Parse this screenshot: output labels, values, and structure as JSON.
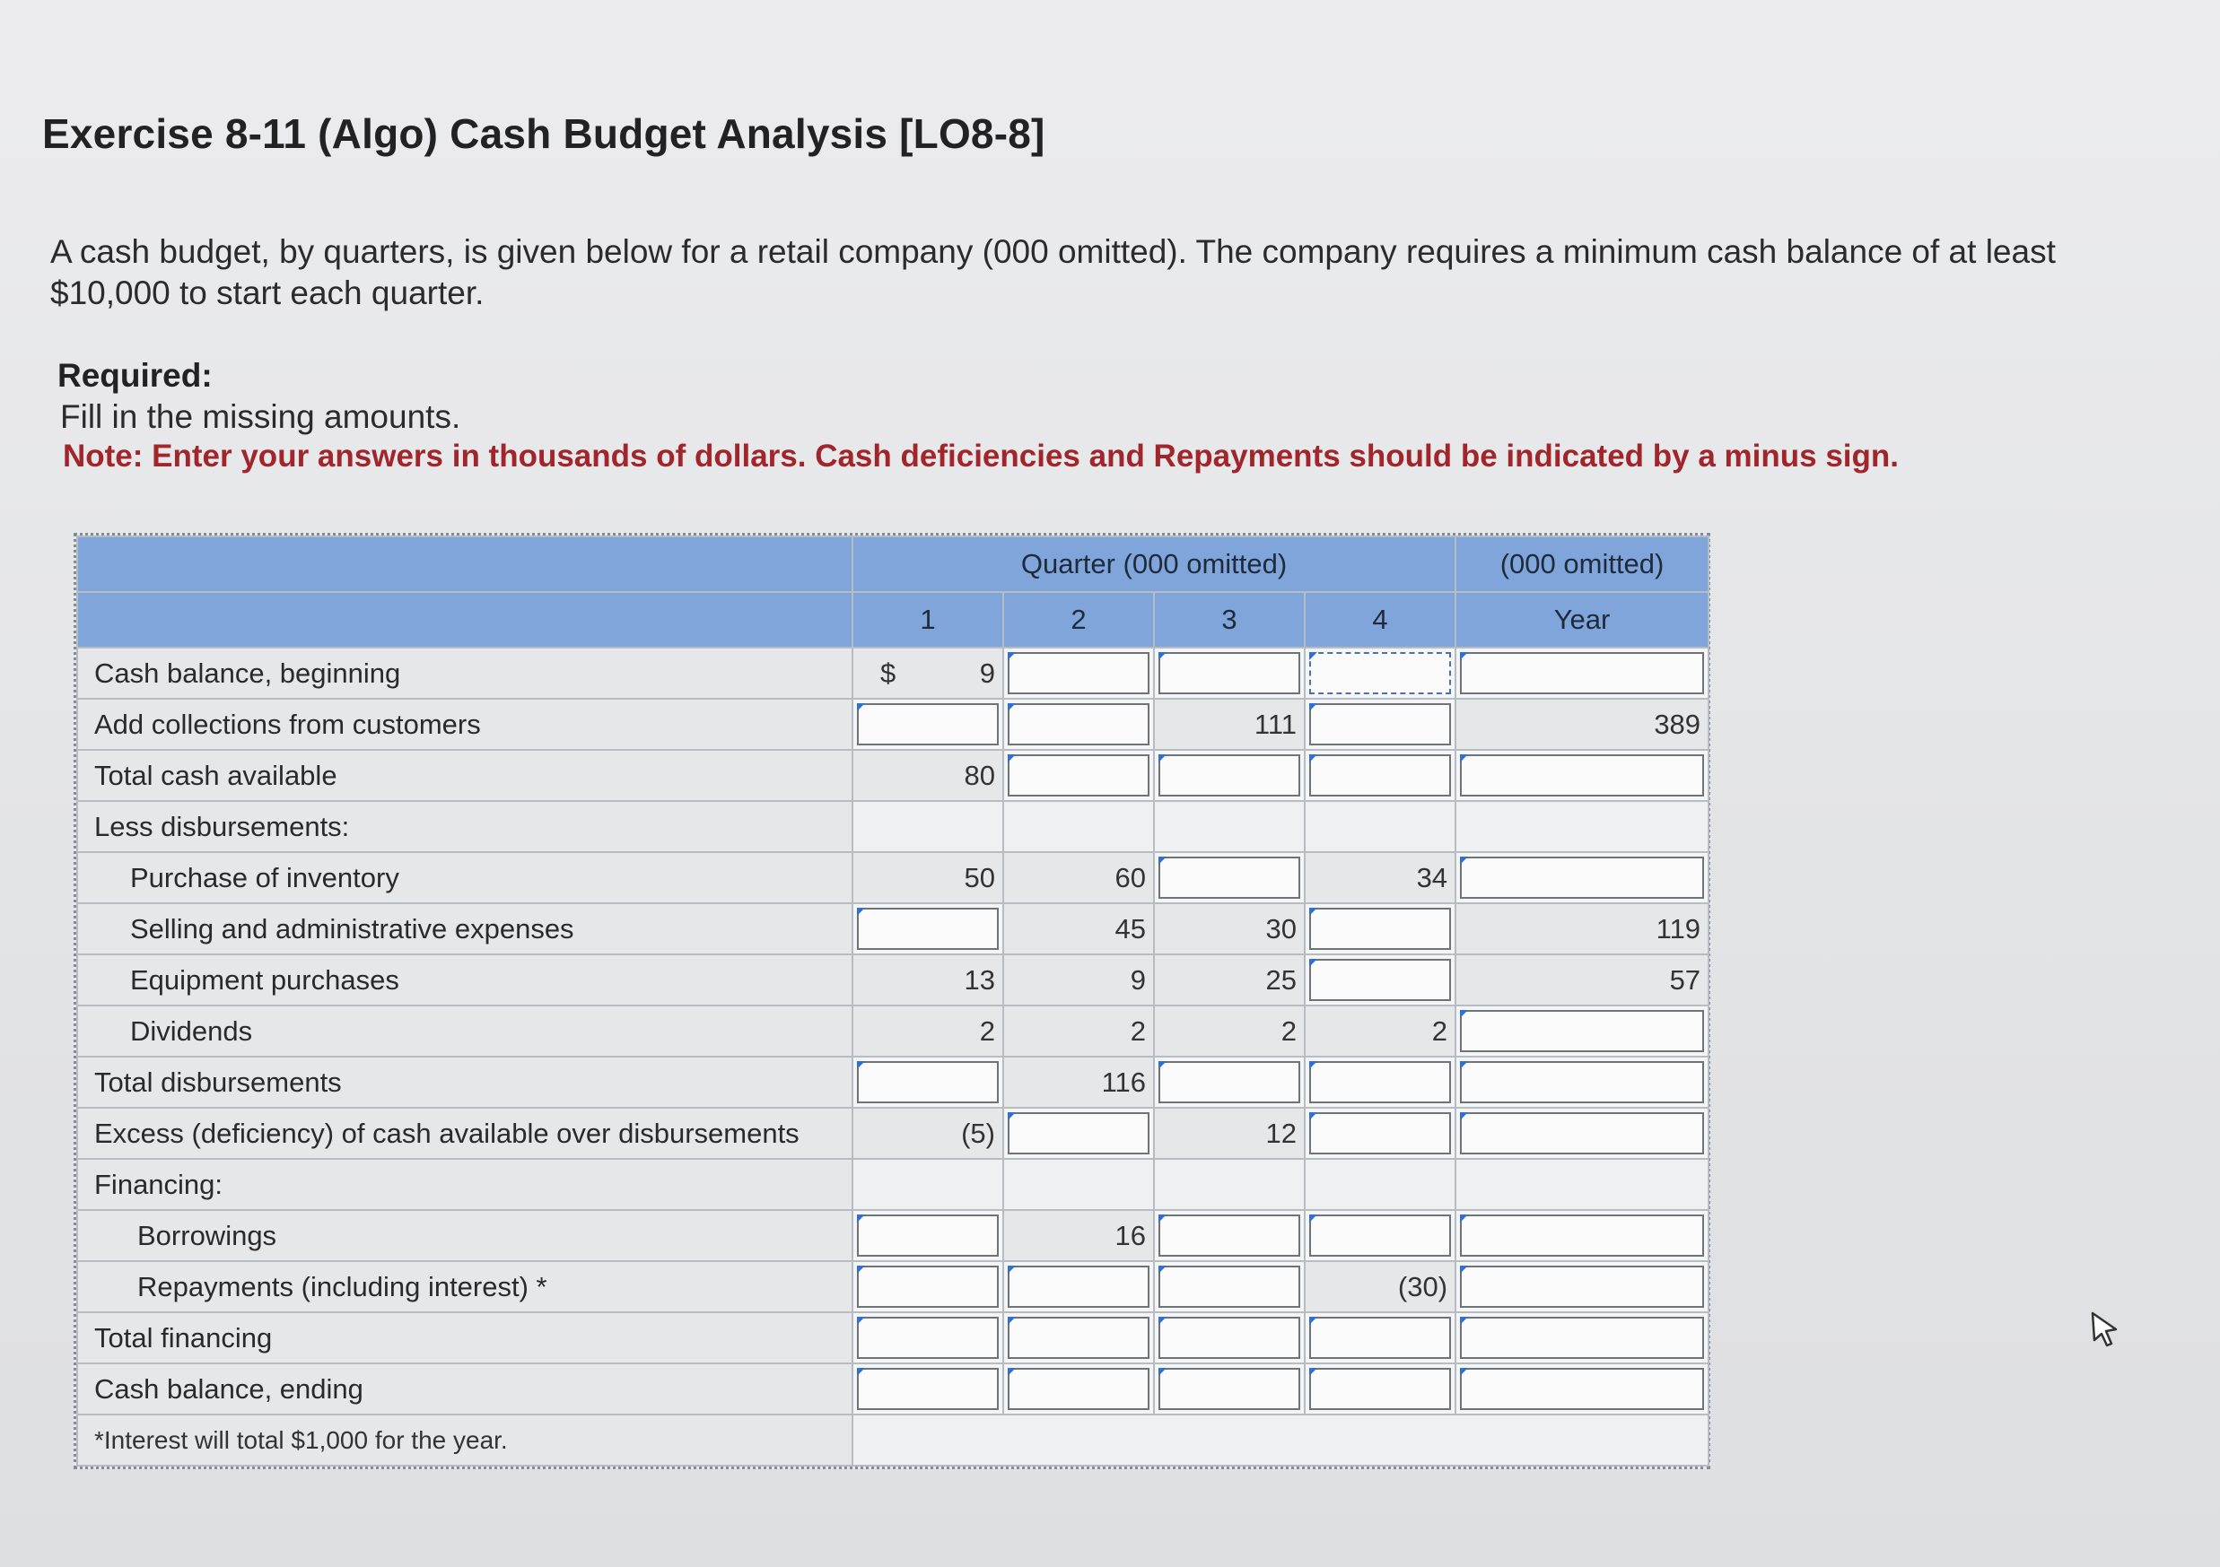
{
  "page": {
    "title": "Exercise 8-11 (Algo) Cash Budget Analysis [LO8-8]",
    "intro": "A cash budget, by quarters, is given below for a retail company (000 omitted). The company requires a minimum cash balance of at least $10,000 to start each quarter.",
    "required_label": "Required:",
    "required_text": "Fill in the missing amounts.",
    "note": "Note: Enter your answers in thousands of dollars. Cash deficiencies and Repayments should be indicated by a minus sign."
  },
  "table": {
    "header_quarter": "Quarter (000 omitted)",
    "header_year_group": "(000 omitted)",
    "columns": [
      "1",
      "2",
      "3",
      "4",
      "Year"
    ],
    "footnote": "*Interest will total $1,000 for the year.",
    "rows": [
      {
        "label": "Cash balance, beginning",
        "indent": 0,
        "cells": [
          "$|9",
          "",
          "",
          "",
          ""
        ]
      },
      {
        "label": "Add collections from customers",
        "indent": 0,
        "cells": [
          "",
          "",
          "111",
          "",
          "389"
        ]
      },
      {
        "label": "Total cash available",
        "indent": 0,
        "cells": [
          "80",
          "",
          "",
          "",
          ""
        ]
      },
      {
        "label": "Less disbursements:",
        "indent": 0,
        "cells": [
          "-",
          "-",
          "-",
          "-",
          "-"
        ]
      },
      {
        "label": "Purchase of inventory",
        "indent": 1,
        "cells": [
          "50",
          "60",
          "",
          "34",
          ""
        ]
      },
      {
        "label": "Selling and administrative expenses",
        "indent": 1,
        "cells": [
          "",
          "45",
          "30",
          "",
          "119"
        ]
      },
      {
        "label": "Equipment purchases",
        "indent": 1,
        "cells": [
          "13",
          "9",
          "25",
          "",
          "57"
        ]
      },
      {
        "label": "Dividends",
        "indent": 1,
        "cells": [
          "2",
          "2",
          "2",
          "2",
          ""
        ]
      },
      {
        "label": "Total disbursements",
        "indent": 0,
        "cells": [
          "",
          "116",
          "",
          "",
          ""
        ]
      },
      {
        "label": "Excess (deficiency) of cash available over disbursements",
        "indent": 0,
        "cells": [
          "(5)",
          "",
          "12",
          "",
          ""
        ]
      },
      {
        "label": "Financing:",
        "indent": 0,
        "cells": [
          "-",
          "-",
          "-",
          "-",
          "-"
        ]
      },
      {
        "label": "Borrowings",
        "indent": 2,
        "cells": [
          "",
          "16",
          "",
          "",
          ""
        ]
      },
      {
        "label": "Repayments (including interest) *",
        "indent": 2,
        "cells": [
          "",
          "",
          "",
          "(30)",
          ""
        ]
      },
      {
        "label": "Total financing",
        "indent": 0,
        "cells": [
          "",
          "",
          "",
          "",
          ""
        ]
      },
      {
        "label": "Cash balance, ending",
        "indent": 0,
        "cells": [
          "",
          "",
          "",
          "",
          ""
        ]
      }
    ]
  }
}
